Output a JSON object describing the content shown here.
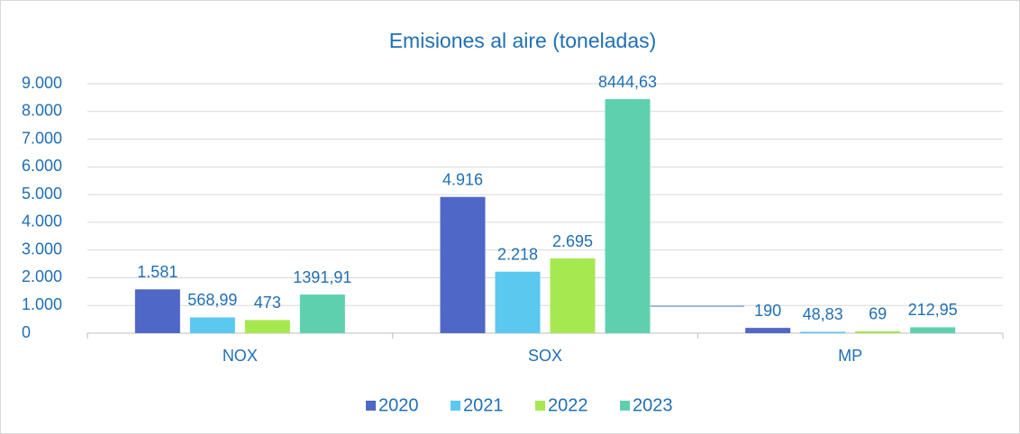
{
  "chart_data": {
    "type": "bar",
    "title": "Emisiones al aire (toneladas)",
    "categories": [
      "NOX",
      "SOX",
      "MP"
    ],
    "series": [
      {
        "name": "2020",
        "color": "#4f67c6",
        "values": [
          1581,
          4916,
          190
        ],
        "value_labels": [
          "1.581",
          "4.916",
          "190"
        ]
      },
      {
        "name": "2021",
        "color": "#5bc8f0",
        "values": [
          568.99,
          2218,
          48.83
        ],
        "value_labels": [
          "568,99",
          "2.218",
          "48,83"
        ]
      },
      {
        "name": "2022",
        "color": "#a6e84f",
        "values": [
          473,
          2695,
          69
        ],
        "value_labels": [
          "473",
          "2.695",
          "69"
        ]
      },
      {
        "name": "2023",
        "color": "#5fd0ae",
        "values": [
          1391.91,
          8444.63,
          212.95
        ],
        "value_labels": [
          "1391,91",
          "8444,63",
          "212,95"
        ]
      }
    ],
    "ylim": [
      0,
      9000
    ],
    "yticks": [
      0,
      {
        "value": 1000,
        "label": "1.000"
      },
      {
        "value": 2000,
        "label": "2.000"
      },
      {
        "value": 3000,
        "label": "3.000"
      },
      {
        "value": 4000,
        "label": "4.000"
      },
      {
        "value": 5000,
        "label": "5.000"
      },
      {
        "value": 6000,
        "label": "6.000"
      },
      {
        "value": 7000,
        "label": "7.000"
      },
      {
        "value": 8000,
        "label": "8.000"
      },
      {
        "value": 9000,
        "label": "9.000"
      }
    ],
    "grid": true,
    "legend": "bottom"
  }
}
